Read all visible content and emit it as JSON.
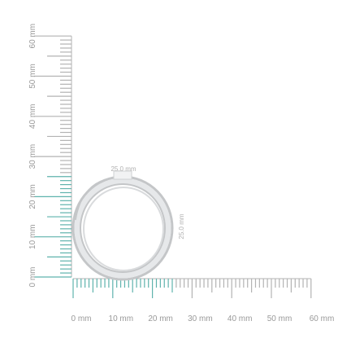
{
  "ruler": {
    "vertical_labels": [
      "0 mm",
      "10 mm",
      "20 mm",
      "30 mm",
      "40 mm",
      "50 mm",
      "60 mm"
    ],
    "horizontal_labels": [
      "0 mm",
      "10 mm",
      "20 mm",
      "30 mm",
      "40 mm",
      "50 mm",
      "60 mm"
    ],
    "highlighted_range_mm": [
      0,
      25
    ],
    "colors": {
      "highlight": "#5fb3ad",
      "tick": "#b3b3b3",
      "label": "#999999"
    }
  },
  "ring": {
    "width_label": "25.0 mm",
    "height_label": "25.0 mm",
    "colors": {
      "metal": "#c4c6c8",
      "metal_light": "#e6e8ea",
      "stone": "#f1f2f3",
      "dim_text": "#b0b0b0"
    }
  }
}
